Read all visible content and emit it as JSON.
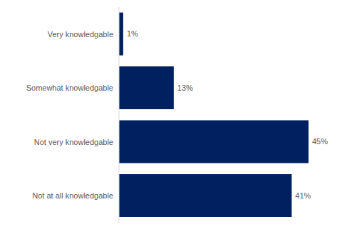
{
  "chart_data": {
    "type": "bar",
    "orientation": "horizontal",
    "categories": [
      "Very knowledgable",
      "Somewhat knowledgable",
      "Not very knowledgable",
      "Not at all knowledgable"
    ],
    "values": [
      1,
      13,
      45,
      41
    ],
    "value_labels": [
      "1%",
      "13%",
      "45%",
      "41%"
    ],
    "color": "#002060",
    "data_labels": true,
    "tick_labels": "y"
  }
}
